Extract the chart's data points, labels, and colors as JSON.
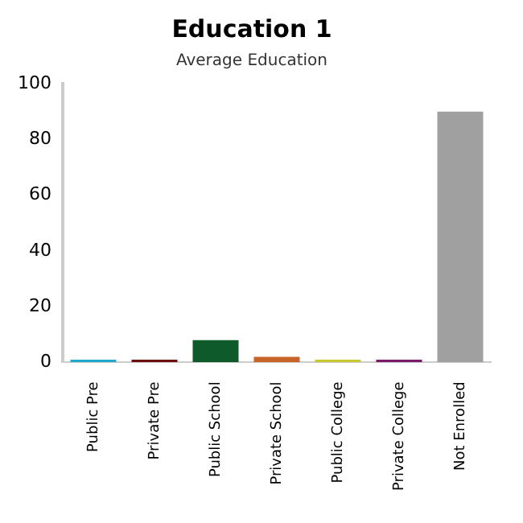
{
  "chart_data": {
    "type": "bar",
    "title": "Education 1",
    "subtitle": "Average Education",
    "categories": [
      "Public Pre",
      "Private Pre",
      "Public School",
      "Private School",
      "Public College",
      "Private College",
      "Not Enrolled"
    ],
    "values": [
      1,
      1,
      8,
      2,
      1,
      1,
      90
    ],
    "colors": [
      "#22aacc",
      "#6b0f0f",
      "#0f5a2a",
      "#c8642a",
      "#c8c832",
      "#7a1a6a",
      "#a0a0a0"
    ],
    "ylim": [
      0,
      100
    ],
    "yticks": [
      0,
      20,
      40,
      60,
      80,
      100
    ],
    "grid": false,
    "legend": false
  }
}
